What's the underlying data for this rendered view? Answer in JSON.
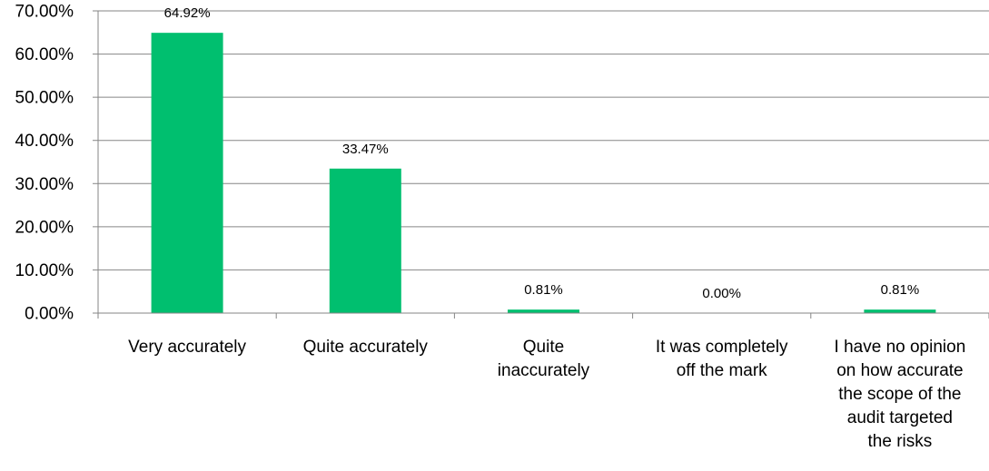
{
  "chart_data": {
    "type": "bar",
    "categories": [
      [
        "Very accurately"
      ],
      [
        "Quite accurately"
      ],
      [
        "Quite",
        "inaccurately"
      ],
      [
        "It was completely",
        "off the mark"
      ],
      [
        "I have no opinion",
        "on how accurate",
        "the scope of the",
        "audit targeted",
        "the risks"
      ]
    ],
    "values": [
      64.92,
      33.47,
      0.81,
      0.0,
      0.81
    ],
    "data_labels": [
      "64.92%",
      "33.47%",
      "0.81%",
      "0.00%",
      "0.81%"
    ],
    "y_ticks": [
      "0.00%",
      "10.00%",
      "20.00%",
      "30.00%",
      "40.00%",
      "50.00%",
      "60.00%",
      "70.00%"
    ],
    "ylim": [
      0,
      70
    ],
    "grid": true,
    "legend": "none",
    "colors": {
      "bar": "#00BF6F",
      "grid": "#868686",
      "axis": "#868686"
    }
  }
}
